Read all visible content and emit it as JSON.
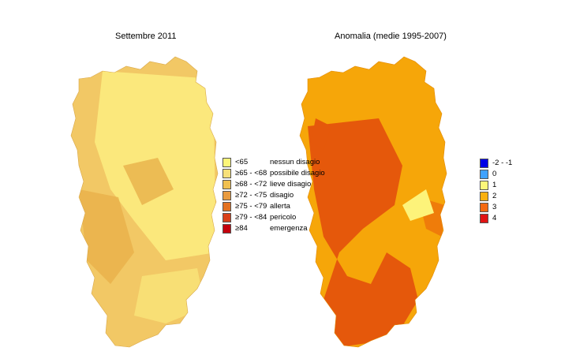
{
  "maps": {
    "left": {
      "title": "Settembre 2011",
      "base_color": "#f2c865",
      "mid_color": "#e9b04a",
      "light_color": "#fbe87c"
    },
    "right": {
      "title": "Anomalia (medie 1995-2007)",
      "base_color": "#f6a609",
      "mid_color": "#ef7c0a",
      "dark_color": "#e5580b",
      "light_color": "#fdf37a"
    }
  },
  "legend_left": [
    {
      "range": "<65",
      "label": "nessun disagio",
      "color": "#fdf57a"
    },
    {
      "range": "≥65 - <68",
      "label": "possibile disagio",
      "color": "#f7e07a"
    },
    {
      "range": "≥68 - <72",
      "label": "lieve disagio",
      "color": "#f0c050"
    },
    {
      "range": "≥72 - <75",
      "label": "disagio",
      "color": "#e99b3f"
    },
    {
      "range": "≥75 - <79",
      "label": "allerta",
      "color": "#e37222"
    },
    {
      "range": "≥79 - <84",
      "label": "pericolo",
      "color": "#d9401a"
    },
    {
      "range": "≥84",
      "label": "emergenza",
      "color": "#c4000d"
    }
  ],
  "legend_right": [
    {
      "value": "-2 - -1",
      "color": "#0000e6"
    },
    {
      "value": "0",
      "color": "#3fa2ff"
    },
    {
      "value": "1",
      "color": "#fdf77a"
    },
    {
      "value": "2",
      "color": "#f9b00f"
    },
    {
      "value": "3",
      "color": "#f46a12"
    },
    {
      "value": "4",
      "color": "#e01414"
    }
  ]
}
